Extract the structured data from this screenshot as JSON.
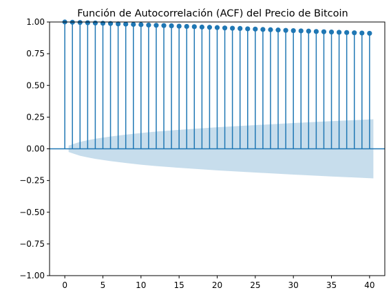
{
  "chart_data": {
    "type": "stem",
    "title": "Función de Autocorrelación (ACF) del Precio de Bitcoin",
    "xlabel": "",
    "ylabel": "",
    "xlim": [
      -2,
      42
    ],
    "ylim": [
      -1.0,
      1.0
    ],
    "xticks": [
      "0",
      "5",
      "10",
      "15",
      "20",
      "25",
      "30",
      "35",
      "40"
    ],
    "yticks": [
      "−1.00",
      "−0.75",
      "−0.50",
      "−0.25",
      "0.00",
      "0.25",
      "0.50",
      "0.75",
      "1.00"
    ],
    "lags": [
      0,
      1,
      2,
      3,
      4,
      5,
      6,
      7,
      8,
      9,
      10,
      11,
      12,
      13,
      14,
      15,
      16,
      17,
      18,
      19,
      20,
      21,
      22,
      23,
      24,
      25,
      26,
      27,
      28,
      29,
      30,
      31,
      32,
      33,
      34,
      35,
      36,
      37,
      38,
      39,
      40
    ],
    "values": [
      1.0,
      0.998,
      0.996,
      0.994,
      0.992,
      0.99,
      0.988,
      0.985,
      0.983,
      0.981,
      0.979,
      0.976,
      0.974,
      0.972,
      0.97,
      0.967,
      0.965,
      0.963,
      0.96,
      0.958,
      0.956,
      0.953,
      0.951,
      0.949,
      0.946,
      0.944,
      0.941,
      0.939,
      0.937,
      0.934,
      0.932,
      0.93,
      0.928,
      0.925,
      0.923,
      0.921,
      0.919,
      0.917,
      0.915,
      0.913,
      0.911
    ],
    "confidence_band": {
      "lags": [
        0.5,
        1,
        2,
        3,
        4,
        5,
        6,
        8,
        10,
        12,
        15,
        18,
        20,
        25,
        30,
        35,
        40.5
      ],
      "upper": [
        0.025,
        0.035,
        0.055,
        0.068,
        0.079,
        0.088,
        0.097,
        0.112,
        0.125,
        0.136,
        0.15,
        0.162,
        0.17,
        0.187,
        0.203,
        0.218,
        0.233
      ]
    },
    "colors": {
      "stem": "#1f77b4",
      "band": "#1f77b4",
      "band_opacity": 0.25
    },
    "grid": false,
    "legend": "none"
  }
}
